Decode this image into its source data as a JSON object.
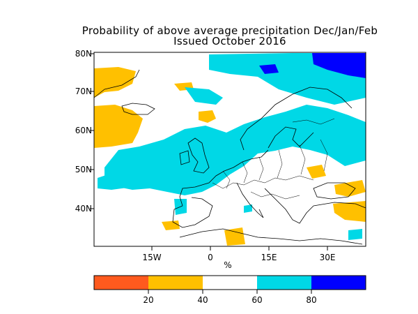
{
  "title": {
    "line1": "Probability of above average precipitation Dec/Jan/Feb",
    "line2": "Issued October 2016"
  },
  "axes": {
    "lat_labels": [
      "80N",
      "70N",
      "60N",
      "50N",
      "40N"
    ],
    "lon_labels": [
      "15W",
      "0",
      "15E",
      "30E"
    ],
    "unit": "%"
  },
  "colorbar": {
    "labels": [
      "20",
      "40",
      "60",
      "80"
    ],
    "colors": [
      "#ff5a1e",
      "#ffc000",
      "#ffffff",
      "#00d8e6",
      "#0000ff"
    ]
  },
  "map_colors": {
    "below_40": "#ffc000",
    "above_60": "#00d8e6",
    "above_80": "#0000ff",
    "coastline": "#000000"
  }
}
